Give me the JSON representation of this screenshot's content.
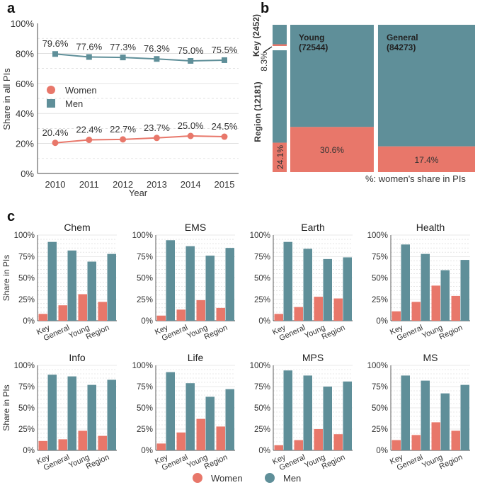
{
  "colors": {
    "women": "#e8776a",
    "men": "#5f8f99",
    "grid": "#d6d6d6",
    "axis": "#4a4a4a",
    "text": "#333333"
  },
  "panel_letters": {
    "a": "a",
    "b": "b",
    "c": "c"
  },
  "chart_data": [
    {
      "panel": "a",
      "type": "line",
      "x": [
        2010,
        2011,
        2012,
        2013,
        2014,
        2015
      ],
      "xlabel": "Year",
      "ylabel": "Share in all PIs",
      "ylim": [
        0,
        100
      ],
      "yticks": [
        "0%",
        "20%",
        "40%",
        "60%",
        "80%",
        "100%"
      ],
      "legend_position": "middle-left",
      "series": [
        {
          "name": "Men",
          "values": [
            79.6,
            77.6,
            77.3,
            76.3,
            75.0,
            75.5
          ],
          "labels": [
            "79.6%",
            "77.6%",
            "77.3%",
            "76.3%",
            "75.0%",
            "75.5%"
          ]
        },
        {
          "name": "Women",
          "values": [
            20.4,
            22.4,
            22.7,
            23.7,
            25.0,
            24.5
          ],
          "labels": [
            "20.4%",
            "22.4%",
            "22.7%",
            "23.7%",
            "25.0%",
            "24.5%"
          ]
        }
      ],
      "legend": [
        "Women",
        "Men"
      ]
    },
    {
      "panel": "b",
      "type": "mosaic",
      "caption": "%: women's share in PIs",
      "columns": [
        {
          "group": "Key + Region",
          "segments": [
            {
              "name": "Key",
              "count": 2452,
              "label": "Key (2452)",
              "women_share": 8.3,
              "women_label": "8.3%"
            },
            {
              "name": "Region",
              "count": 12181,
              "label": "Region (12181)",
              "women_share": 24.1,
              "women_label": "24.1%"
            }
          ]
        },
        {
          "group": "Young",
          "label_top": "Young",
          "label_count": "(72544)",
          "count": 72544,
          "women_share": 30.6,
          "women_label": "30.6%"
        },
        {
          "group": "General",
          "label_top": "General",
          "label_count": "(84273)",
          "count": 84273,
          "women_share": 17.4,
          "women_label": "17.4%"
        }
      ]
    },
    {
      "panel": "c",
      "type": "bar",
      "categories": [
        "Key",
        "General",
        "Young",
        "Region"
      ],
      "ylabel": "Share in PIs",
      "ylim": [
        0,
        100
      ],
      "yticks": [
        "0%",
        "25%",
        "50%",
        "75%",
        "100%"
      ],
      "legend": [
        "Women",
        "Men"
      ],
      "facets": [
        {
          "title": "Chem",
          "women": [
            8,
            18,
            31,
            22
          ],
          "men": [
            92,
            82,
            69,
            78
          ]
        },
        {
          "title": "EMS",
          "women": [
            6,
            13,
            24,
            15
          ],
          "men": [
            94,
            87,
            76,
            85
          ]
        },
        {
          "title": "Earth",
          "women": [
            8,
            16,
            28,
            26
          ],
          "men": [
            92,
            84,
            72,
            74
          ]
        },
        {
          "title": "Health",
          "women": [
            11,
            22,
            41,
            29
          ],
          "men": [
            89,
            78,
            59,
            71
          ]
        },
        {
          "title": "Info",
          "women": [
            11,
            13,
            23,
            17
          ],
          "men": [
            89,
            87,
            77,
            83
          ]
        },
        {
          "title": "Life",
          "women": [
            8,
            21,
            37,
            28
          ],
          "men": [
            92,
            79,
            63,
            72
          ]
        },
        {
          "title": "MPS",
          "women": [
            6,
            12,
            25,
            19
          ],
          "men": [
            94,
            88,
            75,
            81
          ]
        },
        {
          "title": "MS",
          "women": [
            12,
            18,
            33,
            23
          ],
          "men": [
            88,
            82,
            67,
            77
          ]
        }
      ]
    }
  ]
}
